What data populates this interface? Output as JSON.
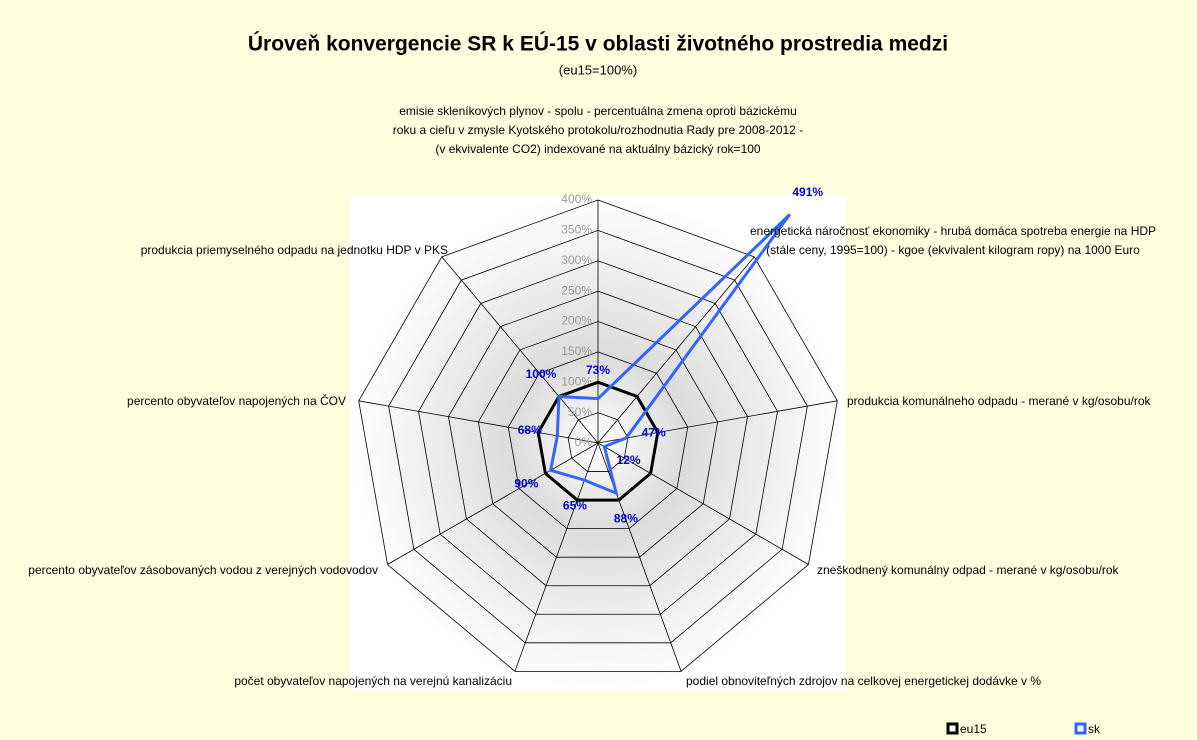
{
  "chart_data": {
    "type": "radar",
    "title": "Úroveň konvergencie SR k EÚ-15 v oblasti životného prostredia medzi",
    "subtitle": "(eu15=100%)",
    "categories": [
      "emisie skleníkových plynov - spolu - percentuálna zmena oproti bázickému roku a cieľu v zmysle Kyotského protokolu/rozhodnutia Rady pre 2008-2012 - (v ekvivalente CO2) indexované na aktuálny bázický rok=100",
      "energetická náročnosť ekonomiky - hrubá domáca spotreba energie na HDP (stále ceny, 1995=100) - kgoe (ekvivalent kilogram ropy) na 1000 Euro",
      "produkcia komunálneho odpadu - merané v kg/osobu/rok",
      "zneškodnený komunálny odpad - merané v kg/osobu/rok",
      "podiel obnoviteľných zdrojov na celkovej energetickej dodávke v %",
      "počet obyvateľov napojených na verejnú kanalizáciu",
      "percento obyvateľov zásobovaných vodou z verejných vodovodov",
      "percento obyvateľov napojených na ČOV",
      "produkcia priemyselného odpadu na jednotku HDP v PKS"
    ],
    "series": [
      {
        "name": "eu15",
        "color": "#000000",
        "values": [
          100,
          100,
          100,
          100,
          100,
          100,
          100,
          100,
          100
        ]
      },
      {
        "name": "sk",
        "color": "#3366ff",
        "values": [
          73,
          491,
          47,
          12,
          88,
          65,
          90,
          68,
          100
        ],
        "value_labels": [
          "73%",
          "491%",
          "47%",
          "12%",
          "88%",
          "65%",
          "90%",
          "68%",
          "100%"
        ]
      }
    ],
    "ylim": [
      0,
      400
    ],
    "yticks": [
      {
        "value": 0,
        "label": "0%"
      },
      {
        "value": 50,
        "label": "50%"
      },
      {
        "value": 100,
        "label": "100%"
      },
      {
        "value": 150,
        "label": "150%"
      },
      {
        "value": 200,
        "label": "200%"
      },
      {
        "value": 250,
        "label": "250%"
      },
      {
        "value": 300,
        "label": "300%"
      },
      {
        "value": 350,
        "label": "350%"
      },
      {
        "value": 400,
        "label": "400%"
      }
    ],
    "grid": true,
    "legend": "bottom-right"
  }
}
